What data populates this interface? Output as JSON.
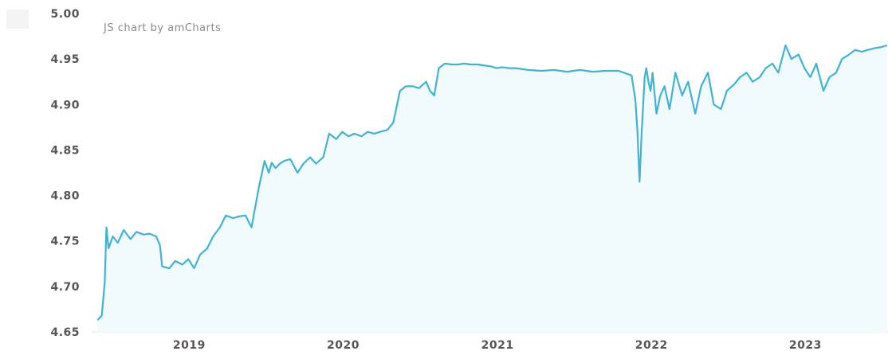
{
  "chart_data": {
    "type": "area",
    "credit": "JS chart by amCharts",
    "title": "",
    "xlabel": "",
    "ylabel": "",
    "ylim": [
      4.65,
      5.0
    ],
    "xlim": [
      "2018-07-01",
      "2023-09-01"
    ],
    "y_ticks": [
      "4.65",
      "4.70",
      "4.75",
      "4.80",
      "4.85",
      "4.90",
      "4.95",
      "5.00"
    ],
    "x_ticks": [
      {
        "label": "2019",
        "date": "2019-01-01"
      },
      {
        "label": "2020",
        "date": "2020-01-01"
      },
      {
        "label": "2021",
        "date": "2021-01-01"
      },
      {
        "label": "2022",
        "date": "2022-01-01"
      },
      {
        "label": "2023",
        "date": "2023-01-01"
      }
    ],
    "line_color": "#3fb3d1",
    "fill_color": "#f1fafc",
    "grid": false,
    "series": [
      {
        "x": [
          "2018-07-15",
          "2018-07-25",
          "2018-08-01",
          "2018-08-05",
          "2018-08-10",
          "2018-08-20",
          "2018-09-01",
          "2018-09-15",
          "2018-10-01",
          "2018-10-15",
          "2018-11-01",
          "2018-11-15",
          "2018-12-01",
          "2018-12-10",
          "2018-12-15",
          "2019-01-01",
          "2019-01-15",
          "2019-02-01",
          "2019-02-15",
          "2019-03-01",
          "2019-03-15",
          "2019-04-01",
          "2019-04-15",
          "2019-05-01",
          "2019-05-15",
          "2019-06-01",
          "2019-06-15",
          "2019-07-01",
          "2019-07-15",
          "2019-08-01",
          "2019-08-15",
          "2019-08-25",
          "2019-09-01",
          "2019-09-10",
          "2019-09-20",
          "2019-10-01",
          "2019-10-15",
          "2019-11-01",
          "2019-11-15",
          "2019-12-01",
          "2019-12-15",
          "2020-01-01",
          "2020-01-15",
          "2020-02-01",
          "2020-02-15",
          "2020-03-01",
          "2020-03-15",
          "2020-04-01",
          "2020-04-15",
          "2020-05-01",
          "2020-05-15",
          "2020-06-01",
          "2020-06-15",
          "2020-07-01",
          "2020-07-15",
          "2020-08-01",
          "2020-08-15",
          "2020-09-01",
          "2020-09-10",
          "2020-09-20",
          "2020-10-01",
          "2020-10-15",
          "2020-11-01",
          "2020-11-15",
          "2020-12-01",
          "2020-12-15",
          "2021-01-01",
          "2021-01-15",
          "2021-02-01",
          "2021-02-15",
          "2021-03-01",
          "2021-03-15",
          "2021-04-01",
          "2021-05-01",
          "2021-06-01",
          "2021-07-01",
          "2021-08-01",
          "2021-09-01",
          "2021-10-01",
          "2021-11-01",
          "2021-12-01",
          "2022-01-01",
          "2022-01-10",
          "2022-01-15",
          "2022-01-20",
          "2022-01-25",
          "2022-02-01",
          "2022-02-05",
          "2022-02-10",
          "2022-02-15",
          "2022-02-20",
          "2022-03-01",
          "2022-03-10",
          "2022-03-20",
          "2022-04-01",
          "2022-04-15",
          "2022-05-01",
          "2022-05-15",
          "2022-06-01",
          "2022-06-15",
          "2022-07-01",
          "2022-07-15",
          "2022-08-01",
          "2022-08-15",
          "2022-09-01",
          "2022-09-15",
          "2022-10-01",
          "2022-10-15",
          "2022-11-01",
          "2022-11-15",
          "2022-12-01",
          "2022-12-15",
          "2023-01-01",
          "2023-01-15",
          "2023-02-01",
          "2023-02-15",
          "2023-03-01",
          "2023-03-15",
          "2023-04-01",
          "2023-04-15",
          "2023-05-01",
          "2023-05-15",
          "2023-06-01",
          "2023-06-15",
          "2023-07-01",
          "2023-07-15",
          "2023-08-01",
          "2023-08-15",
          "2023-08-30"
        ],
        "values": [
          4.663,
          4.668,
          4.705,
          4.765,
          4.742,
          4.755,
          4.748,
          4.762,
          4.752,
          4.76,
          4.757,
          4.758,
          4.755,
          4.745,
          4.722,
          4.72,
          4.728,
          4.724,
          4.73,
          4.72,
          4.735,
          4.742,
          4.755,
          4.765,
          4.778,
          4.775,
          4.777,
          4.778,
          4.765,
          4.808,
          4.838,
          4.825,
          4.836,
          4.83,
          4.835,
          4.838,
          4.84,
          4.825,
          4.835,
          4.842,
          4.835,
          4.842,
          4.868,
          4.862,
          4.87,
          4.865,
          4.868,
          4.865,
          4.87,
          4.868,
          4.87,
          4.872,
          4.88,
          4.915,
          4.92,
          4.92,
          4.918,
          4.925,
          4.915,
          4.91,
          4.94,
          4.945,
          4.944,
          4.944,
          4.945,
          4.944,
          4.944,
          4.943,
          4.942,
          4.94,
          4.941,
          4.94,
          4.94,
          4.938,
          4.937,
          4.938,
          4.936,
          4.938,
          4.936,
          4.937,
          4.937,
          4.932,
          4.905,
          4.87,
          4.815,
          4.87,
          4.93,
          4.94,
          4.925,
          4.915,
          4.935,
          4.89,
          4.91,
          4.92,
          4.895,
          4.935,
          4.91,
          4.925,
          4.89,
          4.92,
          4.935,
          4.9,
          4.895,
          4.915,
          4.922,
          4.93,
          4.935,
          4.925,
          4.93,
          4.94,
          4.945,
          4.935,
          4.965,
          4.95,
          4.955,
          4.94,
          4.93,
          4.945,
          4.915,
          4.93,
          4.935,
          4.95,
          4.955,
          4.96,
          4.958,
          4.96,
          4.962,
          4.963,
          4.965
        ]
      }
    ]
  }
}
